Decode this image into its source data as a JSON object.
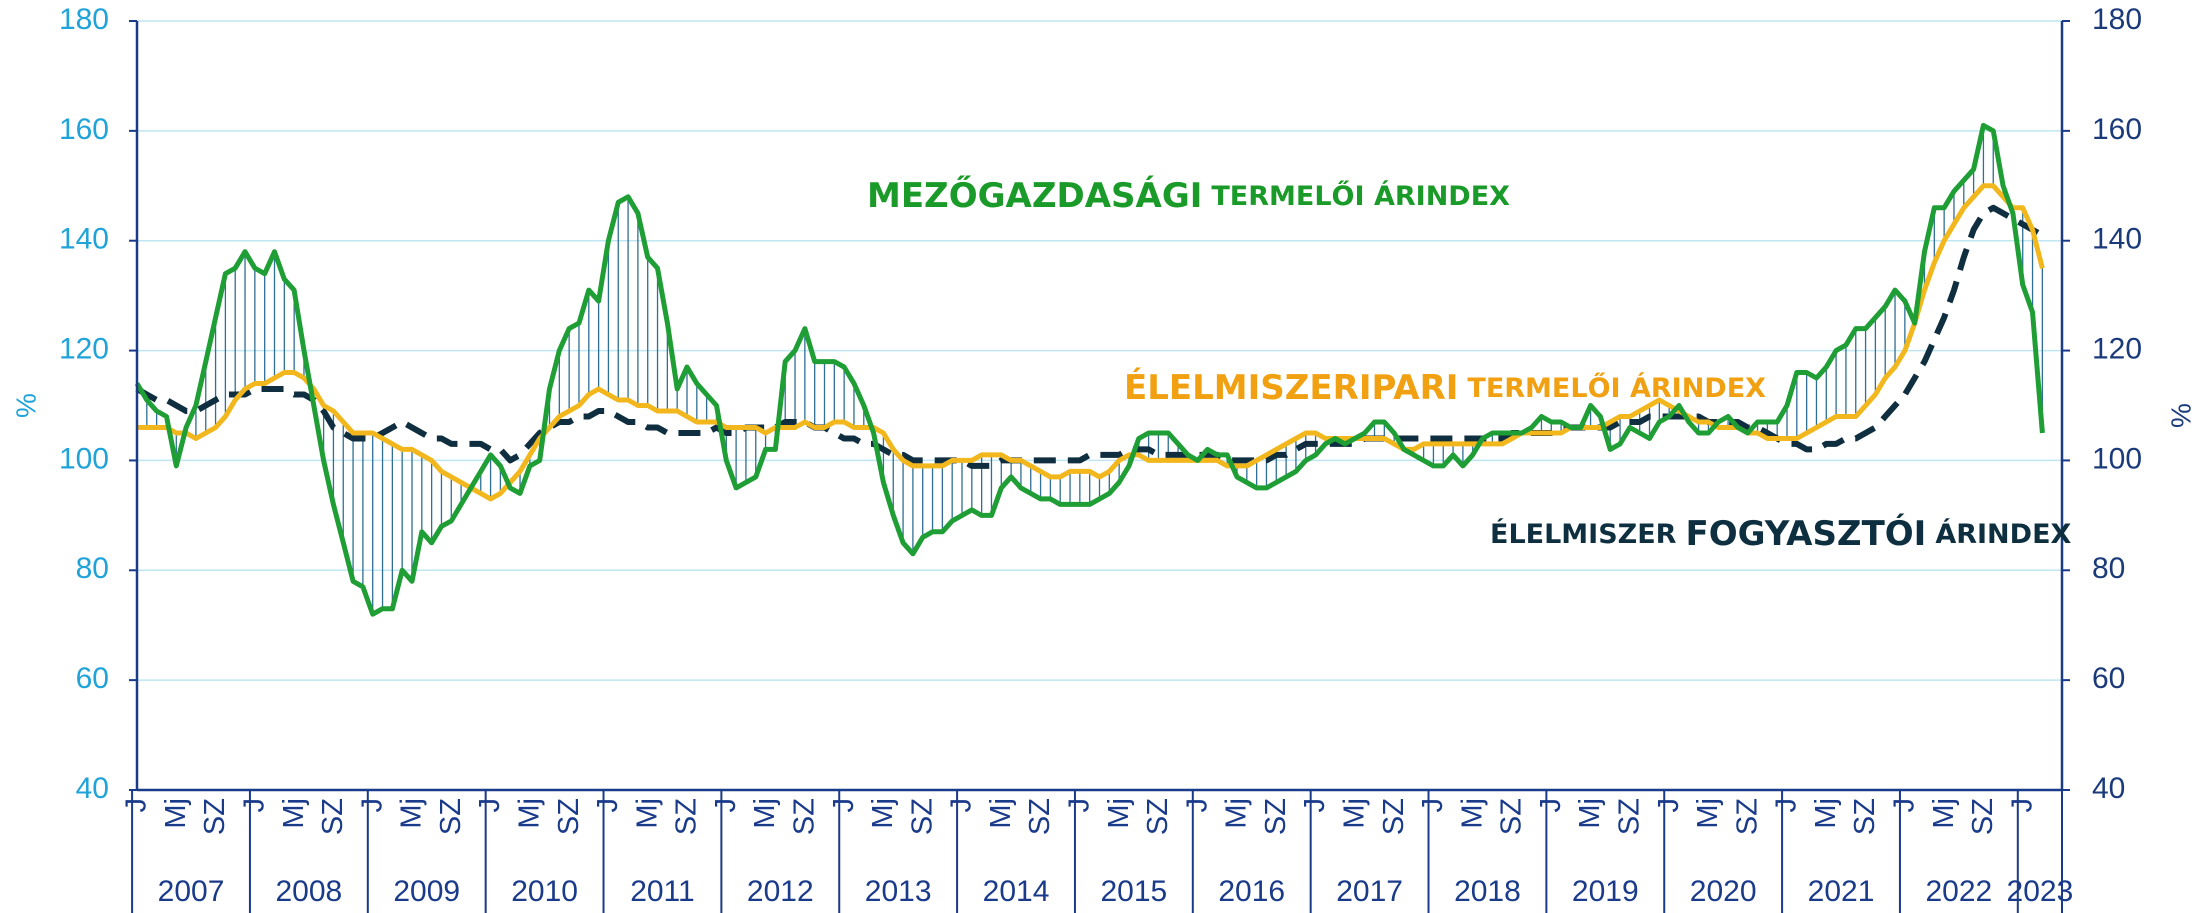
{
  "chart_data": {
    "type": "line",
    "y_label": "%",
    "y2_label": "%",
    "ylim": [
      40,
      180
    ],
    "yticks": [
      40,
      60,
      80,
      100,
      120,
      140,
      160,
      180
    ],
    "y2lim": [
      40,
      180
    ],
    "y2ticks": [
      40,
      60,
      80,
      100,
      120,
      140,
      160,
      180
    ],
    "grid": true,
    "hatch_between": [
      0,
      1
    ],
    "categories": [
      "J",
      null,
      null,
      null,
      "Mj",
      null,
      null,
      null,
      "SZ",
      null,
      null,
      null,
      "J",
      null,
      null,
      null,
      "Mj",
      null,
      null,
      null,
      "SZ",
      null,
      null,
      null,
      "J",
      null,
      null,
      null,
      "Mj",
      null,
      null,
      null,
      "SZ",
      null,
      null,
      null,
      "J",
      null,
      null,
      null,
      "Mj",
      null,
      null,
      null,
      "SZ",
      null,
      null,
      null,
      "J",
      null,
      null,
      null,
      "Mj",
      null,
      null,
      null,
      "SZ",
      null,
      null,
      null,
      "J",
      null,
      null,
      null,
      "Mj",
      null,
      null,
      null,
      "SZ",
      null,
      null,
      null,
      "J",
      null,
      null,
      null,
      "Mj",
      null,
      null,
      null,
      "SZ",
      null,
      null,
      null,
      "J",
      null,
      null,
      null,
      "Mj",
      null,
      null,
      null,
      "SZ",
      null,
      null,
      null,
      "J",
      null,
      null,
      null,
      "Mj",
      null,
      null,
      null,
      "SZ",
      null,
      null,
      null,
      "J",
      null,
      null,
      null,
      "Mj",
      null,
      null,
      null,
      "SZ",
      null,
      null,
      null,
      "J",
      null,
      null,
      null,
      "Mj",
      null,
      null,
      null,
      "SZ",
      null,
      null,
      null,
      "J",
      null,
      null,
      null,
      "Mj",
      null,
      null,
      null,
      "SZ",
      null,
      null,
      null,
      "J",
      null,
      null,
      null,
      "Mj",
      null,
      null,
      null,
      "SZ",
      null,
      null,
      null,
      "J",
      null,
      null,
      null,
      "Mj",
      null,
      null,
      null,
      "SZ",
      null,
      null,
      null,
      "J",
      null,
      null,
      null,
      "Mj",
      null,
      null,
      null,
      "SZ",
      null,
      null,
      null,
      "J",
      null,
      null,
      null,
      "Mj",
      null,
      null,
      null,
      "SZ",
      null,
      null,
      null,
      "J",
      null,
      null
    ],
    "years": [
      "2007",
      "2008",
      "2009",
      "2010",
      "2011",
      "2012",
      "2013",
      "2014",
      "2015",
      "2016",
      "2017",
      "2018",
      "2019",
      "2020",
      "2021",
      "2022",
      "2023"
    ],
    "series": [
      {
        "name": "MEZŐGAZDASÁGI TERMELŐI ÁRINDEX",
        "color": "#1e9e34",
        "dashed": false,
        "values": [
          114,
          111,
          109,
          108,
          99,
          106,
          110,
          118,
          126,
          134,
          135,
          138,
          135,
          134,
          138,
          133,
          131,
          120,
          110,
          100,
          92,
          85,
          78,
          77,
          72,
          73,
          73,
          80,
          78,
          87,
          85,
          88,
          89,
          92,
          95,
          98,
          101,
          99,
          95,
          94,
          99,
          100,
          113,
          120,
          124,
          125,
          131,
          129,
          140,
          147,
          148,
          145,
          137,
          135,
          125,
          113,
          117,
          114,
          112,
          110,
          100,
          95,
          96,
          97,
          102,
          102,
          118,
          120,
          124,
          118,
          118,
          118,
          117,
          114,
          110,
          105,
          96,
          90,
          85,
          83,
          86,
          87,
          87,
          89,
          90,
          91,
          90,
          90,
          95,
          97,
          95,
          94,
          93,
          93,
          92,
          92,
          92,
          92,
          93,
          94,
          96,
          99,
          104,
          105,
          105,
          105,
          103,
          101,
          100,
          102,
          101,
          101,
          97,
          96,
          95,
          95,
          96,
          97,
          98,
          100,
          101,
          103,
          104,
          103,
          104,
          105,
          107,
          107,
          105,
          102,
          101,
          100,
          99,
          99,
          101,
          99,
          101,
          104,
          105,
          105,
          105,
          105,
          106,
          108,
          107,
          107,
          106,
          106,
          110,
          108,
          102,
          103,
          106,
          105,
          104,
          107,
          108,
          110,
          107,
          105,
          105,
          107,
          108,
          106,
          105,
          107,
          107,
          107,
          110,
          116,
          116,
          115,
          117,
          120,
          121,
          124,
          124,
          126,
          128,
          131,
          129,
          125,
          138,
          146,
          146,
          149,
          151,
          153,
          161,
          160,
          150,
          145,
          132,
          127,
          105
        ]
      },
      {
        "name": "ÉLELMISZERIPARI TERMELŐI ÁRINDEX",
        "color": "#f2b71c",
        "dashed": false,
        "values": [
          106,
          106,
          106,
          106,
          105,
          105,
          104,
          105,
          106,
          108,
          111,
          113,
          114,
          114,
          115,
          116,
          116,
          115,
          113,
          110,
          109,
          107,
          105,
          105,
          105,
          104,
          103,
          102,
          102,
          101,
          100,
          98,
          97,
          96,
          95,
          94,
          93,
          94,
          96,
          98,
          101,
          104,
          106,
          108,
          109,
          110,
          112,
          113,
          112,
          111,
          111,
          110,
          110,
          109,
          109,
          109,
          108,
          107,
          107,
          107,
          106,
          106,
          106,
          106,
          105,
          106,
          106,
          106,
          107,
          106,
          106,
          107,
          107,
          106,
          106,
          106,
          105,
          102,
          100,
          99,
          99,
          99,
          99,
          100,
          100,
          100,
          101,
          101,
          101,
          100,
          100,
          99,
          98,
          97,
          97,
          98,
          98,
          98,
          97,
          98,
          100,
          101,
          101,
          100,
          100,
          100,
          100,
          100,
          100,
          100,
          100,
          99,
          99,
          99,
          100,
          101,
          102,
          103,
          104,
          105,
          105,
          104,
          104,
          104,
          104,
          104,
          104,
          104,
          103,
          102,
          102,
          103,
          103,
          103,
          103,
          103,
          103,
          103,
          103,
          103,
          104,
          105,
          105,
          105,
          105,
          105,
          106,
          106,
          106,
          106,
          107,
          108,
          108,
          109,
          110,
          111,
          110,
          109,
          108,
          107,
          107,
          106,
          106,
          106,
          105,
          105,
          104,
          104,
          104,
          104,
          105,
          106,
          107,
          108,
          108,
          108,
          110,
          112,
          115,
          117,
          120,
          125,
          131,
          136,
          140,
          143,
          146,
          148,
          150,
          150,
          148,
          146,
          146,
          142,
          135
        ]
      },
      {
        "name": "ÉLELMISZER FOGYASZTÓI ÁRINDEX",
        "color": "#0f2e3f",
        "dashed": true,
        "values": [
          113,
          112,
          111,
          111,
          110,
          109,
          109,
          110,
          111,
          112,
          112,
          112,
          113,
          113,
          113,
          113,
          112,
          112,
          111,
          109,
          106,
          105,
          104,
          104,
          104,
          105,
          106,
          107,
          106,
          105,
          104,
          104,
          103,
          103,
          103,
          103,
          102,
          102,
          100,
          101,
          103,
          105,
          106,
          107,
          107,
          108,
          108,
          109,
          109,
          108,
          107,
          107,
          106,
          106,
          105,
          105,
          105,
          105,
          105,
          106,
          105,
          105,
          106,
          106,
          106,
          106,
          107,
          107,
          107,
          106,
          106,
          105,
          104,
          104,
          103,
          103,
          102,
          101,
          101,
          100,
          100,
          100,
          100,
          100,
          100,
          99,
          99,
          99,
          100,
          100,
          100,
          100,
          100,
          100,
          100,
          100,
          100,
          101,
          101,
          101,
          101,
          102,
          102,
          102,
          101,
          101,
          101,
          101,
          101,
          101,
          101,
          100,
          100,
          100,
          100,
          100,
          101,
          101,
          102,
          103,
          103,
          103,
          103,
          103,
          103,
          104,
          104,
          104,
          104,
          104,
          104,
          104,
          104,
          104,
          104,
          104,
          104,
          104,
          104,
          104,
          105,
          105,
          105,
          105,
          105,
          106,
          106,
          106,
          106,
          106,
          106,
          107,
          107,
          107,
          108,
          108,
          108,
          108,
          108,
          108,
          107,
          107,
          107,
          107,
          106,
          106,
          105,
          104,
          103,
          103,
          102,
          102,
          103,
          103,
          104,
          104,
          105,
          106,
          108,
          110,
          112,
          115,
          118,
          122,
          126,
          131,
          137,
          142,
          145,
          146,
          145,
          144,
          143,
          142,
          141
        ]
      }
    ],
    "annotations": [
      {
        "color": "#1a9a28",
        "parts": [
          {
            "text": "MEZŐGAZDASÁGI",
            "large": true
          },
          {
            "text": "TERMELŐI ÁRINDEX",
            "large": false
          }
        ]
      },
      {
        "color": "#f0a010",
        "parts": [
          {
            "text": "ÉLELMISZERIPARI",
            "large": true
          },
          {
            "text": "TERMELŐI ÁRINDEX",
            "large": false
          }
        ]
      },
      {
        "color": "#0d2f40",
        "parts": [
          {
            "text": "ÉLELMISZER",
            "large": false
          },
          {
            "text": "FOGYASZTÓI",
            "large": true
          },
          {
            "text": "ÁRINDEX",
            "large": false
          }
        ]
      }
    ]
  }
}
